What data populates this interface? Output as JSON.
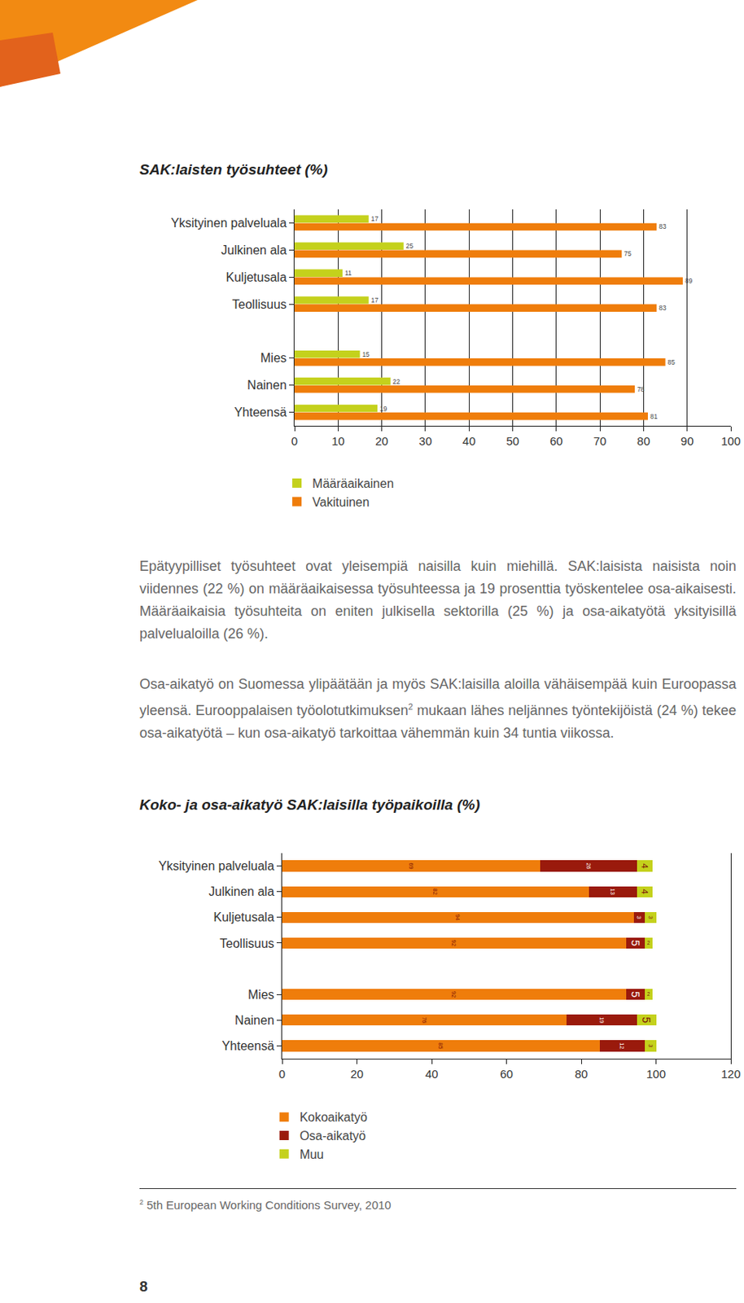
{
  "chart_data": [
    {
      "type": "bar",
      "title": "SAK:laisten työsuhteet  (%)",
      "orientation": "horizontal",
      "stacked": false,
      "categories": [
        "Yksityinen palveluala",
        "Julkinen ala",
        "Kuljetusala",
        "Teollisuus",
        null,
        "Mies",
        "Nainen",
        "Yhteensä"
      ],
      "series": [
        {
          "name": "Määräaikainen",
          "color": "#c4d11c",
          "values": [
            17,
            25,
            11,
            17,
            null,
            15,
            22,
            19
          ]
        },
        {
          "name": "Vakituinen",
          "color": "#ef7d0b",
          "values": [
            83,
            75,
            89,
            83,
            null,
            85,
            78,
            81
          ]
        }
      ],
      "xlim": [
        0,
        100
      ],
      "xticks": [
        0,
        10,
        20,
        30,
        40,
        50,
        60,
        70,
        80,
        90,
        100
      ],
      "grid": true,
      "legend": "bottom",
      "data_labels": true
    },
    {
      "type": "bar",
      "title": "Koko- ja osa-aikatyö SAK:laisilla työpaikoilla (%)",
      "orientation": "horizontal",
      "stacked": true,
      "categories": [
        "Yksityinen palveluala",
        "Julkinen ala",
        "Kuljetusala",
        "Teollisuus",
        null,
        "Mies",
        "Nainen",
        "Yhteensä"
      ],
      "series": [
        {
          "name": "Kokoaikatyö",
          "color": "#ef7d0b",
          "values": [
            69,
            82,
            94,
            92,
            null,
            92,
            76,
            85
          ]
        },
        {
          "name": "Osa-aikatyö",
          "color": "#9a1a0c",
          "values": [
            26,
            13,
            3,
            5,
            null,
            5,
            19,
            12
          ]
        },
        {
          "name": "Muu",
          "color": "#c4d11c",
          "values": [
            4,
            4,
            3,
            2,
            null,
            2,
            5,
            3
          ]
        }
      ],
      "xlim": [
        0,
        120
      ],
      "xticks": [
        0,
        20,
        40,
        60,
        80,
        100,
        120
      ],
      "grid": false,
      "legend": "bottom",
      "data_labels": true
    }
  ],
  "page": {
    "paragraphs": [
      {
        "text": "Epätyypilliset työsuhteet ovat yleisempiä naisilla kuin miehillä. SAK:laisista naisista noin viidennes (22 %) on määräaikaisessa työsuhteessa ja 19 prosenttia työskentelee osa-aikaisesti. Määräaikaisia työsuhteita on eniten julkisella sektorilla (25 %) ja osa-aikatyötä yksityisillä palvelualoilla (26 %)."
      },
      {
        "text": "Osa-aikatyö on Suomessa ylipäätään ja myös SAK:laisilla aloilla vähäisempää kuin Euroopassa yleensä. Eurooppalaisen työolotutkimuksen",
        "sup": "2",
        "after": " mukaan lähes neljännes työntekijöistä (24 %) tekee osa-aikatyötä – kun osa-aikatyö tarkoittaa vähemmän kuin 34 tuntia viikossa."
      }
    ],
    "footnote": {
      "mark": "2",
      "text": "5th European Working Conditions Survey, 2010"
    },
    "page_number": "8"
  }
}
